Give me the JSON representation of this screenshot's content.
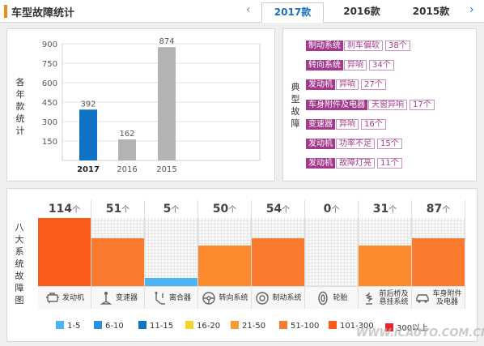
{
  "header": {
    "title": "车型故障统计",
    "prev_icon": "‹",
    "next_icon": "›",
    "tabs": [
      {
        "label": "2017款",
        "active": true
      },
      {
        "label": "2016款",
        "active": false
      },
      {
        "label": "2015款",
        "active": false
      }
    ]
  },
  "yearly_chart": {
    "side_label": "各年款统计",
    "chart_data": {
      "type": "bar",
      "categories": [
        "2017",
        "2016",
        "2015"
      ],
      "values": [
        392,
        162,
        874
      ],
      "yticks": [
        "900",
        "750",
        "600",
        "450",
        "300",
        "150"
      ],
      "ylim": [
        0,
        900
      ],
      "colors": [
        "#0e73c4",
        "#b3b3b3",
        "#b3b3b3"
      ]
    }
  },
  "typical": {
    "side_label": "典型故障",
    "items": [
      {
        "system": "制动系统",
        "issue": "刹车偏软",
        "count": "38个"
      },
      {
        "system": "转向系统",
        "issue": "异响",
        "count": "34个"
      },
      {
        "system": "发动机",
        "issue": "异响",
        "count": "27个"
      },
      {
        "system": "车身附件及电器",
        "issue": "天窗异响",
        "count": "17个"
      },
      {
        "system": "变速器",
        "issue": "异响",
        "count": "16个"
      },
      {
        "system": "发动机",
        "issue": "功率不足",
        "count": "15个"
      },
      {
        "system": "发动机",
        "issue": "故障灯亮",
        "count": "11个"
      }
    ]
  },
  "systems": {
    "side_label": "八大系统故障图",
    "unit": "个",
    "columns": [
      {
        "value": "114",
        "label_lines": [
          "发动机"
        ],
        "icon": "engine-icon",
        "level": 1.0,
        "color": "#fc5a19"
      },
      {
        "value": "51",
        "label_lines": [
          "变速器"
        ],
        "icon": "gearshift-icon",
        "level": 0.7,
        "color": "#fb7a2e"
      },
      {
        "value": "5",
        "label_lines": [
          "离合器"
        ],
        "icon": "clutch-pedal-icon",
        "level": 0.12,
        "color": "#4db3f5"
      },
      {
        "value": "50",
        "label_lines": [
          "转向系统"
        ],
        "icon": "steering-wheel-icon",
        "level": 0.6,
        "color": "#fb8a2e"
      },
      {
        "value": "54",
        "label_lines": [
          "制动系统"
        ],
        "icon": "brake-disc-icon",
        "level": 0.7,
        "color": "#fb7a2e"
      },
      {
        "value": "0",
        "label_lines": [
          "轮胎"
        ],
        "icon": "tire-icon",
        "level": 0.0,
        "color": "#fb7a2e"
      },
      {
        "value": "31",
        "label_lines": [
          "前后桥及",
          "悬挂系统"
        ],
        "icon": "suspension-icon",
        "level": 0.6,
        "color": "#fb8a2e"
      },
      {
        "value": "87",
        "label_lines": [
          "车身附件",
          "及电器"
        ],
        "icon": "car-body-icon",
        "level": 0.7,
        "color": "#fb7a2e"
      }
    ],
    "legend": [
      {
        "label": "1-5",
        "color": "#4db3f5"
      },
      {
        "label": "6-10",
        "color": "#2a8fe0"
      },
      {
        "label": "11-15",
        "color": "#0e73c4"
      },
      {
        "label": "16-20",
        "color": "#f5d327"
      },
      {
        "label": "21-50",
        "color": "#fb9a2e"
      },
      {
        "label": "51-100",
        "color": "#fb7a2e"
      },
      {
        "label": "101-300",
        "color": "#fc5a19"
      },
      {
        "label": "300以上",
        "color": "#e8232c"
      }
    ]
  },
  "watermark": "WWW.ICAUTO.COM.CN"
}
